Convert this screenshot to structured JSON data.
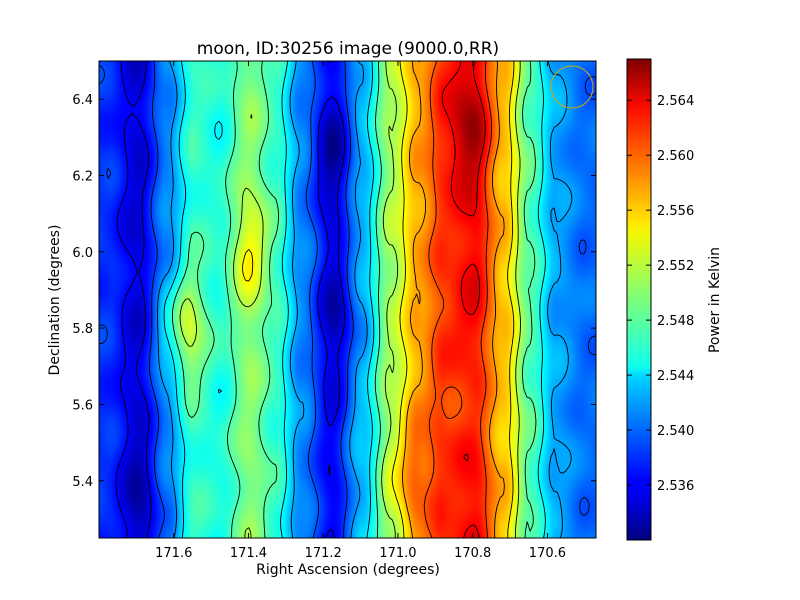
{
  "chart_data": {
    "type": "heatmap",
    "title": "moon, ID:30256 image (9000.0,RR)",
    "xlabel": "Right Ascension (degrees)",
    "ylabel": "Declination (degrees)",
    "colorbar_label": "Power in Kelvin",
    "colormap": "jet",
    "x_reversed": true,
    "xlim": [
      171.8,
      170.47
    ],
    "ylim": [
      5.25,
      6.5
    ],
    "x_ticks": [
      171.6,
      171.4,
      171.2,
      171.0,
      170.8,
      170.6
    ],
    "x_tick_labels": [
      "171.6",
      "171.4",
      "171.2",
      "171.0",
      "170.8",
      "170.6"
    ],
    "y_ticks": [
      5.4,
      5.6,
      5.8,
      6.0,
      6.2,
      6.4
    ],
    "y_tick_labels": [
      "5.4",
      "5.6",
      "5.8",
      "6.0",
      "6.2",
      "6.4"
    ],
    "colorbar_range": [
      2.532,
      2.567
    ],
    "colorbar_ticks": [
      2.536,
      2.54,
      2.544,
      2.548,
      2.552,
      2.556,
      2.56,
      2.564
    ],
    "colorbar_tick_labels": [
      "2.536",
      "2.540",
      "2.544",
      "2.548",
      "2.552",
      "2.556",
      "2.560",
      "2.564"
    ],
    "ra_profile": {
      "ra": [
        171.78,
        171.7,
        171.62,
        171.55,
        171.48,
        171.4,
        171.33,
        171.26,
        171.18,
        171.1,
        171.02,
        170.95,
        170.88,
        170.8,
        170.72,
        170.65,
        170.58,
        170.5
      ],
      "power": [
        2.538,
        2.535,
        2.541,
        2.547,
        2.546,
        2.55,
        2.547,
        2.541,
        2.536,
        2.543,
        2.551,
        2.557,
        2.561,
        2.563,
        2.556,
        2.548,
        2.542,
        2.54
      ]
    },
    "features": [
      {
        "ra": 170.82,
        "dec": 6.33,
        "power": 2.566
      },
      {
        "ra": 170.84,
        "dec": 5.9,
        "power": 2.562
      },
      {
        "ra": 170.8,
        "dec": 5.6,
        "power": 2.561
      },
      {
        "ra": 170.97,
        "dec": 5.42,
        "power": 2.559
      },
      {
        "ra": 171.17,
        "dec": 6.25,
        "power": 2.533
      },
      {
        "ra": 171.15,
        "dec": 5.83,
        "power": 2.535
      },
      {
        "ra": 171.68,
        "dec": 5.35,
        "power": 2.534
      },
      {
        "ra": 171.4,
        "dec": 6.0,
        "power": 2.554
      },
      {
        "ra": 171.58,
        "dec": 5.8,
        "power": 2.551
      }
    ],
    "contour_levels": [
      2.536,
      2.539,
      2.542,
      2.545,
      2.548,
      2.551,
      2.554,
      2.557,
      2.56,
      2.563
    ],
    "contour_color": "#000000",
    "beam_marker_color": "#d9a300"
  }
}
